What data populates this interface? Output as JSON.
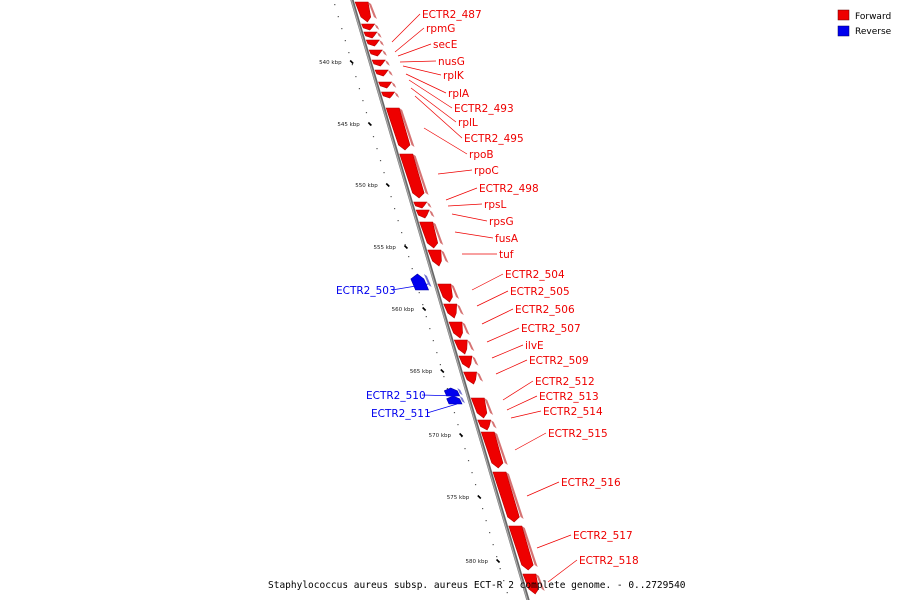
{
  "colors": {
    "forward": "#ee0000",
    "reverse": "#0000ee",
    "forward_dark": "#b40000",
    "reverse_dark": "#0000a8",
    "last_gene": "#f08080"
  },
  "legend": [
    {
      "label": "Forward",
      "color": "#ee0000"
    },
    {
      "label": "Reverse",
      "color": "#0000ee"
    }
  ],
  "caption": "Staphylococcus aureus subsp. aureus ECT-R 2 complete genome. - 0..2729540",
  "ticks": [
    "540 kbp",
    "545 kbp",
    "550 kbp",
    "555 kbp",
    "560 kbp",
    "565 kbp",
    "570 kbp",
    "575 kbp",
    "580 kbp"
  ],
  "genes": [
    {
      "label": "ECTR2_487",
      "strand": "forward"
    },
    {
      "label": "rpmG",
      "strand": "forward"
    },
    {
      "label": "secE",
      "strand": "forward"
    },
    {
      "label": "nusG",
      "strand": "forward"
    },
    {
      "label": "rplK",
      "strand": "forward"
    },
    {
      "label": "rplA",
      "strand": "forward"
    },
    {
      "label": "ECTR2_493",
      "strand": "forward"
    },
    {
      "label": "rplL",
      "strand": "forward"
    },
    {
      "label": "ECTR2_495",
      "strand": "forward"
    },
    {
      "label": "rpoB",
      "strand": "forward"
    },
    {
      "label": "rpoC",
      "strand": "forward"
    },
    {
      "label": "ECTR2_498",
      "strand": "forward"
    },
    {
      "label": "rpsL",
      "strand": "forward"
    },
    {
      "label": "rpsG",
      "strand": "forward"
    },
    {
      "label": "fusA",
      "strand": "forward"
    },
    {
      "label": "tuf",
      "strand": "forward"
    },
    {
      "label": "ECTR2_503",
      "strand": "reverse"
    },
    {
      "label": "ECTR2_504",
      "strand": "forward"
    },
    {
      "label": "ECTR2_505",
      "strand": "forward"
    },
    {
      "label": "ECTR2_506",
      "strand": "forward"
    },
    {
      "label": "ECTR2_507",
      "strand": "forward"
    },
    {
      "label": "ilvE",
      "strand": "forward"
    },
    {
      "label": "ECTR2_509",
      "strand": "forward"
    },
    {
      "label": "ECTR2_510",
      "strand": "reverse"
    },
    {
      "label": "ECTR2_511",
      "strand": "reverse"
    },
    {
      "label": "ECTR2_512",
      "strand": "forward"
    },
    {
      "label": "ECTR2_513",
      "strand": "forward"
    },
    {
      "label": "ECTR2_514",
      "strand": "forward"
    },
    {
      "label": "ECTR2_515",
      "strand": "forward"
    },
    {
      "label": "ECTR2_516",
      "strand": "forward"
    },
    {
      "label": "ECTR2_517",
      "strand": "forward"
    },
    {
      "label": "ECTR2_518",
      "strand": "forward"
    }
  ]
}
